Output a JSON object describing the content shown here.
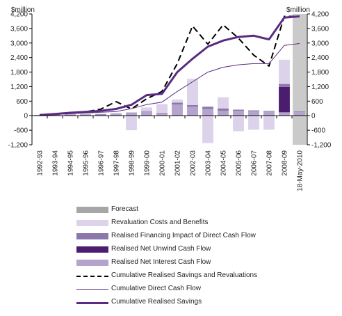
{
  "chart_data": {
    "type": "bar",
    "unit_left": "$million",
    "unit_right": "$million",
    "categories": [
      "1992-93",
      "1993-94",
      "1994-95",
      "1995-96",
      "1996-97",
      "1997-98",
      "1998-99",
      "1999-00",
      "2000-01",
      "2001-02",
      "2002-03",
      "2003-04",
      "2004-05",
      "2005-06",
      "2006-07",
      "2007-08",
      "2008-09",
      "18-May-2010"
    ],
    "ylim": [
      -1200,
      4200
    ],
    "yticks": [
      4200,
      3600,
      3000,
      2400,
      1800,
      1200,
      600,
      0,
      -600,
      -1200
    ],
    "ytick_labels": [
      "4,200",
      "3,600",
      "3,000",
      "2,400",
      "1,800",
      "1,200",
      "600",
      "0",
      "-600",
      "-1,200"
    ],
    "forecast_category": "18-May-2010",
    "bar_series": [
      {
        "name": "Realised Net Interest Cash Flow",
        "color": "#b3a3cd",
        "values": [
          20,
          30,
          40,
          45,
          55,
          70,
          110,
          170,
          60,
          460,
          370,
          280,
          200,
          200,
          190,
          180,
          140,
          160
        ]
      },
      {
        "name": "Realised Net Unwind Cash Flow",
        "color": "#4b1c70",
        "values": [
          0,
          0,
          0,
          0,
          0,
          0,
          0,
          0,
          0,
          0,
          0,
          0,
          0,
          0,
          0,
          0,
          1050,
          0
        ]
      },
      {
        "name": "Realised Financing Impact of Direct Cash Flow",
        "color": "#8b77aa",
        "values": [
          5,
          5,
          10,
          10,
          10,
          15,
          20,
          20,
          40,
          80,
          70,
          90,
          100,
          50,
          30,
          20,
          120,
          20
        ]
      },
      {
        "name": "Revaluation Costs and Benefits",
        "color": "#dcd3ea",
        "values": [
          10,
          10,
          15,
          20,
          20,
          40,
          -600,
          150,
          380,
          130,
          1080,
          -1130,
          460,
          -640,
          -580,
          -580,
          1000,
          0
        ]
      }
    ],
    "line_series": [
      {
        "name": "Cumulative Realised Savings and Revaluations",
        "style": "dashed",
        "color": "#000000",
        "values": [
          30,
          70,
          120,
          160,
          270,
          580,
          280,
          700,
          1000,
          2150,
          3700,
          2950,
          3750,
          3200,
          2500,
          2050,
          4100,
          4100
        ]
      },
      {
        "name": "Cumulative Direct Cash Flow",
        "style": "thin",
        "color": "#5a2b82",
        "values": [
          20,
          50,
          80,
          110,
          140,
          170,
          290,
          460,
          560,
          1000,
          1400,
          1800,
          2000,
          2100,
          2150,
          2150,
          2900,
          2980
        ]
      },
      {
        "name": "Cumulative Realised Savings",
        "style": "thick",
        "color": "#5a2b82",
        "values": [
          30,
          70,
          120,
          160,
          200,
          280,
          450,
          850,
          900,
          1800,
          2350,
          2850,
          3100,
          3250,
          3300,
          3150,
          4050,
          4100
        ]
      }
    ]
  },
  "legend": {
    "items": [
      {
        "label": "Forecast",
        "kind": "box",
        "color": "#a6a6a6"
      },
      {
        "label": "Revaluation Costs and Benefits",
        "kind": "box",
        "color": "#dcd3ea"
      },
      {
        "label": "Realised Financing Impact of Direct Cash Flow",
        "kind": "box",
        "color": "#8b77aa"
      },
      {
        "label": "Realised Net Unwind Cash Flow",
        "kind": "box",
        "color": "#4b1c70"
      },
      {
        "label": "Realised Net Interest Cash Flow",
        "kind": "box",
        "color": "#b3a3cd"
      },
      {
        "label": "Cumulative Realised Savings and Revaluations",
        "kind": "dashed",
        "color": "#000000"
      },
      {
        "label": "Cumulative Direct Cash Flow",
        "kind": "thin",
        "color": "#5a2b82"
      },
      {
        "label": "Cumulative Realised Savings",
        "kind": "thick",
        "color": "#5a2b82"
      }
    ]
  }
}
